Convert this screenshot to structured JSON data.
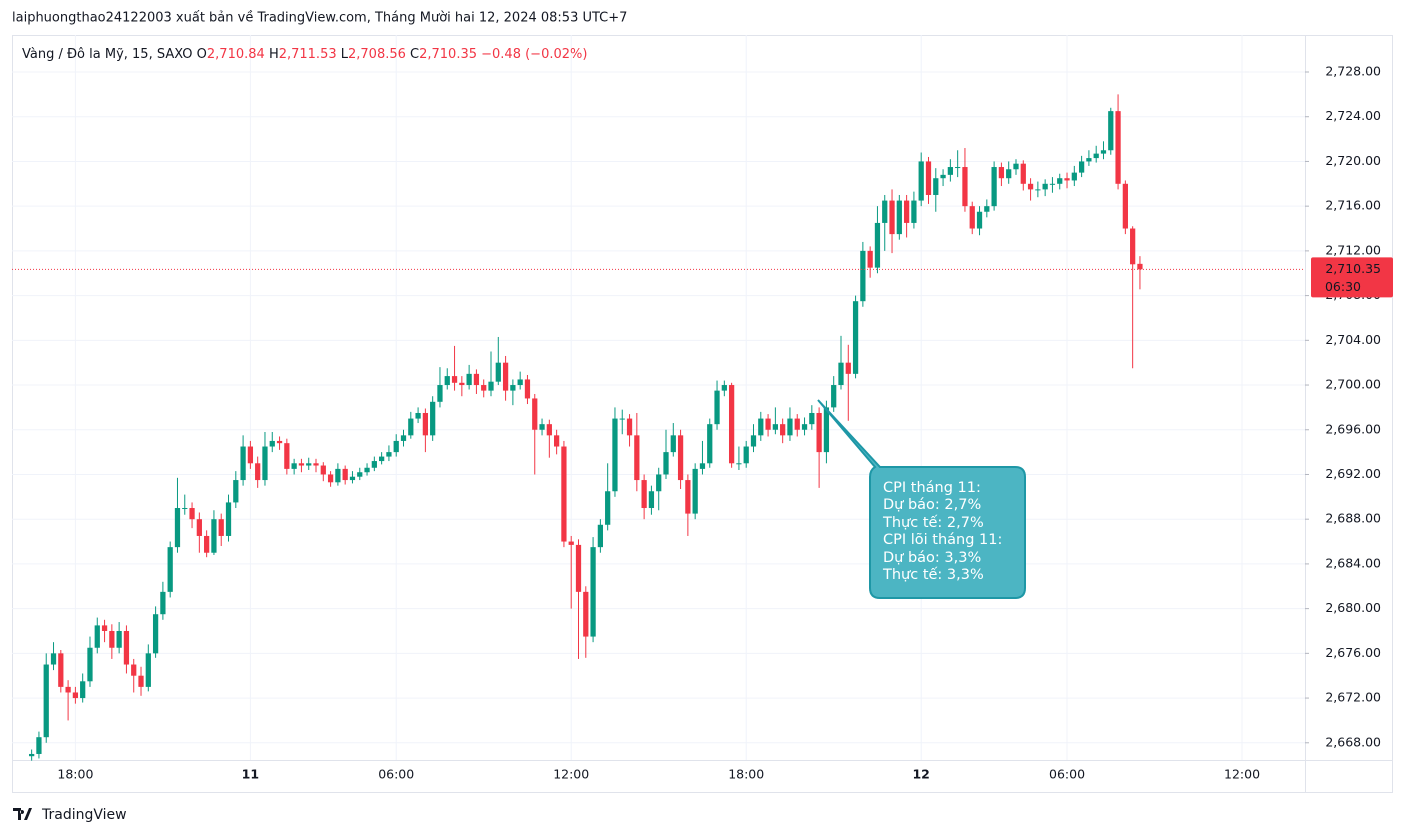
{
  "header": {
    "publisher": "laiphuongthao24122003 xuất bản về TradingView.com, Tháng Mười hai 12, 2024 08:53 UTC+7"
  },
  "chart_data": {
    "type": "candlestick",
    "legend": {
      "symbol": "Vàng / Đô la Mỹ, 15, SAXO",
      "items": [
        {
          "key": "O",
          "value": "2,710.84"
        },
        {
          "key": "H",
          "value": "2,711.53"
        },
        {
          "key": "L",
          "value": "2,708.56"
        },
        {
          "key": "C",
          "value": "2,710.35"
        }
      ],
      "change": "−0.48 (−0.02%)"
    },
    "up_color": "#089981",
    "down_color": "#f23645",
    "grid": true,
    "ylim": [
      2666.46,
      2731.31
    ],
    "yticks": [
      {
        "value": 2668,
        "label": "2,668.00"
      },
      {
        "value": 2672,
        "label": "2,672.00"
      },
      {
        "value": 2676,
        "label": "2,676.00"
      },
      {
        "value": 2680,
        "label": "2,680.00"
      },
      {
        "value": 2684,
        "label": "2,684.00"
      },
      {
        "value": 2688,
        "label": "2,688.00"
      },
      {
        "value": 2692,
        "label": "2,692.00"
      },
      {
        "value": 2696,
        "label": "2,696.00"
      },
      {
        "value": 2700,
        "label": "2,700.00"
      },
      {
        "value": 2704,
        "label": "2,704.00"
      },
      {
        "value": 2708,
        "label": "2,708.00"
      },
      {
        "value": 2712,
        "label": "2,712.00"
      },
      {
        "value": 2716,
        "label": "2,716.00"
      },
      {
        "value": 2720,
        "label": "2,720.00"
      },
      {
        "value": 2724,
        "label": "2,724.00"
      },
      {
        "value": 2728,
        "label": "2,728.00"
      }
    ],
    "price_line": {
      "value": 2710.35,
      "label": "2,710.35",
      "countdown": "06:30"
    },
    "categories": [
      null,
      null,
      null,
      null,
      null,
      null,
      "18:00",
      null,
      null,
      null,
      null,
      null,
      null,
      null,
      null,
      null,
      null,
      null,
      null,
      null,
      null,
      null,
      null,
      null,
      null,
      null,
      null,
      null,
      null,
      null,
      "11",
      null,
      null,
      null,
      null,
      null,
      null,
      null,
      null,
      null,
      null,
      null,
      null,
      null,
      null,
      null,
      null,
      null,
      null,
      null,
      "06:00",
      null,
      null,
      null,
      null,
      null,
      null,
      null,
      null,
      null,
      null,
      null,
      null,
      null,
      null,
      null,
      null,
      null,
      null,
      null,
      null,
      null,
      null,
      null,
      "12:00",
      null,
      null,
      null,
      null,
      null,
      null,
      null,
      null,
      null,
      null,
      null,
      null,
      null,
      null,
      null,
      null,
      null,
      null,
      null,
      null,
      null,
      null,
      null,
      "18:00",
      null,
      null,
      null,
      null,
      null,
      null,
      null,
      null,
      null,
      null,
      null,
      null,
      null,
      null,
      null,
      null,
      null,
      null,
      null,
      null,
      null,
      null,
      null,
      "12",
      null,
      null,
      null,
      null,
      null,
      null,
      null,
      null,
      null,
      null,
      null,
      null,
      null,
      null,
      null,
      null,
      null,
      null,
      null,
      "06:00",
      null,
      null,
      null,
      null,
      null,
      null,
      null,
      null,
      null,
      null,
      null,
      null,
      null,
      null,
      null,
      null,
      null,
      null,
      null,
      null,
      null,
      null,
      null,
      "12:00",
      null,
      null,
      null,
      null,
      null,
      null,
      null,
      null
    ],
    "ohlc": [
      [
        2666.8,
        2667.4,
        2666.4,
        2667
      ],
      [
        2667,
        2669,
        2666.6,
        2668.5
      ],
      [
        2668.5,
        2676,
        2668,
        2675
      ],
      [
        2675,
        2677,
        2674.5,
        2676
      ],
      [
        2676,
        2676.3,
        2672.5,
        2673
      ],
      [
        2673,
        2673.6,
        2670,
        2672.5
      ],
      [
        2672.5,
        2673,
        2671.5,
        2672
      ],
      [
        2672,
        2674.2,
        2671.6,
        2673.5
      ],
      [
        2673.5,
        2677.5,
        2673,
        2676.5
      ],
      [
        2676.5,
        2679.2,
        2676,
        2678.5
      ],
      [
        2678.5,
        2679,
        2677,
        2678
      ],
      [
        2678,
        2678.6,
        2675.5,
        2676.5
      ],
      [
        2676.5,
        2678.8,
        2676,
        2678
      ],
      [
        2678,
        2678.5,
        2674.2,
        2675
      ],
      [
        2675,
        2675.5,
        2672.5,
        2674
      ],
      [
        2674,
        2674.8,
        2672.2,
        2673
      ],
      [
        2673,
        2676.8,
        2672.6,
        2676
      ],
      [
        2676,
        2680.2,
        2675.6,
        2679.5
      ],
      [
        2679.5,
        2682.4,
        2679,
        2681.5
      ],
      [
        2681.5,
        2686,
        2681,
        2685.5
      ],
      [
        2685.5,
        2691.7,
        2685,
        2689
      ],
      [
        2689,
        2690.2,
        2688.4,
        2689
      ],
      [
        2689,
        2689.5,
        2687.2,
        2688
      ],
      [
        2688,
        2688.6,
        2685,
        2686.5
      ],
      [
        2686.5,
        2687,
        2684.6,
        2685
      ],
      [
        2685,
        2688.8,
        2684.8,
        2688
      ],
      [
        2688,
        2688.5,
        2685.6,
        2686.5
      ],
      [
        2686.5,
        2690.2,
        2686,
        2689.5
      ],
      [
        2689.5,
        2692.3,
        2689,
        2691.5
      ],
      [
        2691.5,
        2695.5,
        2691,
        2694.5
      ],
      [
        2694.5,
        2695,
        2692.5,
        2693
      ],
      [
        2693,
        2693.6,
        2690.8,
        2691.5
      ],
      [
        2691.5,
        2695.8,
        2691,
        2694.5
      ],
      [
        2694.5,
        2695.8,
        2694,
        2695
      ],
      [
        2695,
        2695.4,
        2694.2,
        2694.8
      ],
      [
        2694.8,
        2695.2,
        2692,
        2692.5
      ],
      [
        2692.5,
        2693.4,
        2692,
        2693
      ],
      [
        2693,
        2693.4,
        2692.2,
        2692.8
      ],
      [
        2692.8,
        2693.5,
        2692.4,
        2693
      ],
      [
        2693,
        2693.4,
        2692.2,
        2692.8
      ],
      [
        2692.8,
        2693.1,
        2691.4,
        2692
      ],
      [
        2692,
        2692.3,
        2690.9,
        2691.3
      ],
      [
        2691.3,
        2693,
        2691,
        2692.5
      ],
      [
        2692.5,
        2692.8,
        2691.1,
        2691.5
      ],
      [
        2691.5,
        2692.3,
        2691.2,
        2691.8
      ],
      [
        2691.8,
        2692.6,
        2691.5,
        2692.2
      ],
      [
        2692.2,
        2693,
        2691.9,
        2692.6
      ],
      [
        2692.6,
        2693.6,
        2692.3,
        2693.2
      ],
      [
        2693.2,
        2694,
        2692.9,
        2693.6
      ],
      [
        2693.6,
        2694.6,
        2693.2,
        2694
      ],
      [
        2694,
        2695.6,
        2693.6,
        2695
      ],
      [
        2695,
        2696,
        2694.5,
        2695.5
      ],
      [
        2695.5,
        2697.6,
        2695.2,
        2697
      ],
      [
        2697,
        2698,
        2696.6,
        2697.5
      ],
      [
        2697.5,
        2697.9,
        2694,
        2695.5
      ],
      [
        2695.5,
        2699,
        2695,
        2698.5
      ],
      [
        2698.5,
        2701.6,
        2698,
        2700
      ],
      [
        2700,
        2701.5,
        2699.6,
        2700.8
      ],
      [
        2700.8,
        2703.5,
        2699.5,
        2700.2
      ],
      [
        2700.2,
        2700.8,
        2699,
        2700
      ],
      [
        2700,
        2701.8,
        2699.6,
        2701
      ],
      [
        2701,
        2701.4,
        2699.2,
        2700
      ],
      [
        2700,
        2700.5,
        2698.9,
        2699.5
      ],
      [
        2699.5,
        2703,
        2699,
        2700.3
      ],
      [
        2700.3,
        2704.3,
        2700,
        2702
      ],
      [
        2702,
        2702.6,
        2698.6,
        2699.5
      ],
      [
        2699.5,
        2700.5,
        2698.2,
        2700
      ],
      [
        2700,
        2701.2,
        2699.6,
        2700.5
      ],
      [
        2700.5,
        2700.9,
        2698.3,
        2698.8
      ],
      [
        2698.8,
        2699.2,
        2692,
        2696
      ],
      [
        2696,
        2697,
        2695.5,
        2696.5
      ],
      [
        2696.5,
        2696.9,
        2693.5,
        2695.5
      ],
      [
        2695.5,
        2696,
        2693.8,
        2694.5
      ],
      [
        2694.5,
        2695,
        2685.5,
        2686
      ],
      [
        2686,
        2686.5,
        2680,
        2685.7
      ],
      [
        2685.7,
        2686.2,
        2675.5,
        2681.5
      ],
      [
        2681.5,
        2682,
        2675.6,
        2677.5
      ],
      [
        2677.5,
        2686.4,
        2677,
        2685.5
      ],
      [
        2685.5,
        2688,
        2685,
        2687.5
      ],
      [
        2687.5,
        2693,
        2687,
        2690.5
      ],
      [
        2690.5,
        2698,
        2690,
        2697
      ],
      [
        2697,
        2697.8,
        2695.6,
        2697
      ],
      [
        2697,
        2697.4,
        2694.5,
        2695.5
      ],
      [
        2695.5,
        2697.5,
        2690.5,
        2691.5
      ],
      [
        2691.5,
        2692,
        2688,
        2689
      ],
      [
        2689,
        2691,
        2688.4,
        2690.5
      ],
      [
        2690.5,
        2692.6,
        2688.8,
        2692
      ],
      [
        2692,
        2696,
        2691.6,
        2694
      ],
      [
        2694,
        2696.6,
        2693.6,
        2695.5
      ],
      [
        2695.5,
        2696,
        2690.7,
        2691.5
      ],
      [
        2691.5,
        2692,
        2686.5,
        2688.5
      ],
      [
        2688.5,
        2693,
        2688,
        2692.5
      ],
      [
        2692.5,
        2695,
        2692,
        2693
      ],
      [
        2693,
        2697,
        2692.6,
        2696.5
      ],
      [
        2696.5,
        2700.4,
        2696,
        2699.5
      ],
      [
        2699.5,
        2700.4,
        2699,
        2700
      ],
      [
        2700,
        2700.2,
        2692.6,
        2693
      ],
      [
        2693,
        2694.5,
        2692.4,
        2693
      ],
      [
        2693,
        2695,
        2692.6,
        2694.5
      ],
      [
        2694.5,
        2696.5,
        2694,
        2695.5
      ],
      [
        2695.5,
        2697.6,
        2695,
        2697
      ],
      [
        2697,
        2697.4,
        2695.4,
        2696
      ],
      [
        2696,
        2698,
        2695.6,
        2696.5
      ],
      [
        2696.5,
        2697,
        2694.8,
        2695.5
      ],
      [
        2695.5,
        2698,
        2695,
        2697
      ],
      [
        2697,
        2697.4,
        2695.4,
        2696
      ],
      [
        2696,
        2697.1,
        2695.5,
        2696.5
      ],
      [
        2696.5,
        2698.2,
        2696,
        2697.5
      ],
      [
        2697.5,
        2698,
        2690.8,
        2694
      ],
      [
        2694,
        2698.6,
        2693,
        2698
      ],
      [
        2698,
        2700.8,
        2697.6,
        2700
      ],
      [
        2700,
        2704.4,
        2699.6,
        2702
      ],
      [
        2702,
        2703.6,
        2696.8,
        2701
      ],
      [
        2701,
        2708,
        2700.6,
        2707.5
      ],
      [
        2707.5,
        2712.8,
        2707,
        2712
      ],
      [
        2712,
        2712.4,
        2709.6,
        2710.5
      ],
      [
        2710.5,
        2716,
        2710,
        2714.5
      ],
      [
        2714.5,
        2717,
        2712,
        2716.5
      ],
      [
        2716.5,
        2717.5,
        2711.8,
        2713.5
      ],
      [
        2713.5,
        2717,
        2713,
        2716.5
      ],
      [
        2716.5,
        2717,
        2713.2,
        2714.5
      ],
      [
        2714.5,
        2717.3,
        2714,
        2716.5
      ],
      [
        2716.5,
        2720.8,
        2716,
        2720
      ],
      [
        2720,
        2720.4,
        2716.2,
        2717
      ],
      [
        2717,
        2719.4,
        2715.5,
        2718.5
      ],
      [
        2718.5,
        2719.3,
        2717.8,
        2718.8
      ],
      [
        2718.8,
        2720.2,
        2718.2,
        2719.5
      ],
      [
        2719.5,
        2721,
        2718.6,
        2719.5
      ],
      [
        2719.5,
        2721.2,
        2715.5,
        2716
      ],
      [
        2716,
        2716.4,
        2713.5,
        2714
      ],
      [
        2714,
        2716,
        2713.4,
        2715.5
      ],
      [
        2715.5,
        2716.6,
        2715,
        2716
      ],
      [
        2716,
        2720,
        2715.6,
        2719.5
      ],
      [
        2719.5,
        2719.9,
        2717.8,
        2718.5
      ],
      [
        2718.5,
        2720,
        2718,
        2719.3
      ],
      [
        2719.3,
        2720.2,
        2718.8,
        2719.8
      ],
      [
        2719.8,
        2720.1,
        2717.4,
        2718
      ],
      [
        2718,
        2718.5,
        2716.5,
        2717.5
      ],
      [
        2717.5,
        2718.2,
        2716.8,
        2717.5
      ],
      [
        2717.5,
        2718.4,
        2716.9,
        2718
      ],
      [
        2718,
        2718.6,
        2717.2,
        2718
      ],
      [
        2718,
        2718.9,
        2717.5,
        2718.5
      ],
      [
        2718.5,
        2719,
        2717.6,
        2718.3
      ],
      [
        2718.3,
        2719.6,
        2717.8,
        2719
      ],
      [
        2719,
        2720.5,
        2718.6,
        2720
      ],
      [
        2720,
        2721,
        2719.6,
        2720.3
      ],
      [
        2720.3,
        2721.4,
        2719.9,
        2720.7
      ],
      [
        2720.7,
        2721.8,
        2720.2,
        2721
      ],
      [
        2721,
        2724.8,
        2720.6,
        2724.5
      ],
      [
        2724.5,
        2726,
        2717.5,
        2718
      ],
      [
        2718,
        2718.3,
        2713.5,
        2714
      ],
      [
        2714,
        2714.2,
        2701.5,
        2710.8
      ],
      [
        2710.84,
        2711.53,
        2708.56,
        2710.35
      ],
      null,
      null,
      null,
      null,
      null,
      null,
      null,
      null,
      null,
      null,
      null,
      null,
      null,
      null,
      null,
      null,
      null,
      null,
      null,
      null,
      null,
      null
    ],
    "annotation": {
      "lines": [
        "CPI tháng 11:",
        "Dự báo: 2,7%",
        "Thực tế: 2,7%",
        "CPI lõi tháng 11:",
        "Dự báo: 3,3%",
        "Thực tế: 3,3%"
      ]
    }
  },
  "footer": {
    "brand": "TradingView"
  }
}
